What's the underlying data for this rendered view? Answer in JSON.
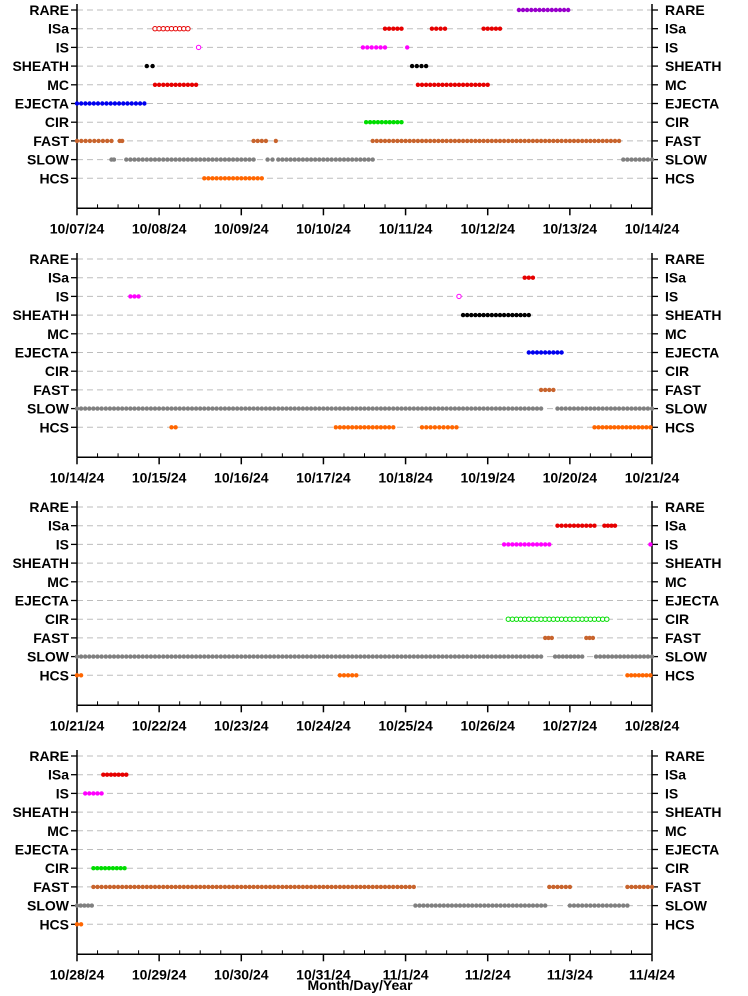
{
  "chart_data": {
    "type": "scatter",
    "categories": [
      "RARE",
      "ISa",
      "IS",
      "SHEATH",
      "MC",
      "EJECTA",
      "CIR",
      "FAST",
      "SLOW",
      "HCS"
    ],
    "xlabel": "Month/Day/Year",
    "grid": "horizontal dashed",
    "colors": {
      "RARE": "#9900cc",
      "ISa": "#e60000",
      "IS": "#ff00ff",
      "SHEATH": "#000000",
      "MC": "#e60000",
      "EJECTA": "#0000ee",
      "CIR": "#00dd00",
      "FAST": "#c8642d",
      "SLOW": "#808080",
      "HCS": "#ff6600"
    },
    "panels": [
      {
        "xticks": [
          "10/07/24",
          "10/08/24",
          "10/09/24",
          "10/10/24",
          "10/11/24",
          "10/12/24",
          "10/13/24",
          "10/14/24"
        ],
        "xlim_days": [
          0,
          7
        ],
        "series": [
          {
            "category": "RARE",
            "segments": [
              [
                5.38,
                5.98
              ]
            ],
            "style": "filled"
          },
          {
            "category": "ISa",
            "segments": [
              [
                0.95,
                1.35
              ]
            ],
            "style": "open"
          },
          {
            "category": "ISa",
            "segments": [
              [
                3.75,
                3.95
              ],
              [
                4.32,
                4.48
              ],
              [
                4.95,
                5.15
              ]
            ],
            "style": "filled"
          },
          {
            "category": "IS",
            "segments": [
              [
                1.48,
                1.48
              ]
            ],
            "style": "open"
          },
          {
            "category": "IS",
            "segments": [
              [
                3.48,
                3.75
              ],
              [
                4.02,
                4.02
              ]
            ],
            "style": "filled"
          },
          {
            "category": "SHEATH",
            "segments": [
              [
                0.85,
                0.92
              ],
              [
                4.08,
                4.25
              ]
            ],
            "style": "filled"
          },
          {
            "category": "MC",
            "segments": [
              [
                0.95,
                1.45
              ],
              [
                4.15,
                5.0
              ]
            ],
            "style": "filled"
          },
          {
            "category": "EJECTA",
            "segments": [
              [
                0.0,
                0.82
              ]
            ],
            "style": "filled"
          },
          {
            "category": "CIR",
            "segments": [
              [
                3.52,
                3.95
              ]
            ],
            "style": "filled"
          },
          {
            "category": "FAST",
            "segments": [
              [
                0.0,
                0.42
              ],
              [
                0.52,
                0.55
              ],
              [
                2.15,
                2.3
              ],
              [
                2.42,
                2.42
              ],
              [
                3.6,
                6.6
              ]
            ],
            "style": "filled"
          },
          {
            "category": "SLOW",
            "segments": [
              [
                0.42,
                0.45
              ],
              [
                0.6,
                2.15
              ],
              [
                2.32,
                2.38
              ],
              [
                2.45,
                3.6
              ],
              [
                6.65,
                7.0
              ]
            ],
            "style": "filled"
          },
          {
            "category": "HCS",
            "segments": [
              [
                1.55,
                2.25
              ]
            ],
            "style": "filled"
          }
        ]
      },
      {
        "xticks": [
          "10/14/24",
          "10/15/24",
          "10/16/24",
          "10/17/24",
          "10/18/24",
          "10/19/24",
          "10/20/24",
          "10/21/24"
        ],
        "xlim_days": [
          0,
          7
        ],
        "series": [
          {
            "category": "ISa",
            "segments": [
              [
                5.45,
                5.55
              ]
            ],
            "style": "filled"
          },
          {
            "category": "IS",
            "segments": [
              [
                0.65,
                0.75
              ]
            ],
            "style": "filled"
          },
          {
            "category": "IS",
            "segments": [
              [
                4.65,
                4.65
              ]
            ],
            "style": "open"
          },
          {
            "category": "SHEATH",
            "segments": [
              [
                4.7,
                5.5
              ]
            ],
            "style": "filled"
          },
          {
            "category": "EJECTA",
            "segments": [
              [
                5.5,
                5.9
              ]
            ],
            "style": "filled"
          },
          {
            "category": "FAST",
            "segments": [
              [
                5.65,
                5.8
              ]
            ],
            "style": "filled"
          },
          {
            "category": "SLOW",
            "segments": [
              [
                0.0,
                5.65
              ],
              [
                5.85,
                7.0
              ]
            ],
            "style": "filled"
          },
          {
            "category": "HCS",
            "segments": [
              [
                1.15,
                1.2
              ],
              [
                3.15,
                3.85
              ],
              [
                4.2,
                4.62
              ],
              [
                6.3,
                6.98
              ]
            ],
            "style": "filled"
          }
        ]
      },
      {
        "xticks": [
          "10/21/24",
          "10/22/24",
          "10/23/24",
          "10/24/24",
          "10/25/24",
          "10/26/24",
          "10/27/24",
          "10/28/24"
        ],
        "xlim_days": [
          0,
          7
        ],
        "series": [
          {
            "category": "ISa",
            "segments": [
              [
                5.85,
                6.3
              ],
              [
                6.42,
                6.55
              ]
            ],
            "style": "filled"
          },
          {
            "category": "IS",
            "segments": [
              [
                5.2,
                5.75
              ],
              [
                6.98,
                6.98
              ]
            ],
            "style": "filled"
          },
          {
            "category": "CIR",
            "segments": [
              [
                5.25,
                6.45
              ]
            ],
            "style": "open"
          },
          {
            "category": "FAST",
            "segments": [
              [
                5.7,
                5.78
              ],
              [
                6.2,
                6.28
              ]
            ],
            "style": "filled"
          },
          {
            "category": "SLOW",
            "segments": [
              [
                0.0,
                5.65
              ],
              [
                5.82,
                6.15
              ],
              [
                6.32,
                7.0
              ]
            ],
            "style": "filled"
          },
          {
            "category": "HCS",
            "segments": [
              [
                0.0,
                0.05
              ],
              [
                3.2,
                3.4
              ],
              [
                6.7,
                6.98
              ]
            ],
            "style": "filled"
          }
        ]
      },
      {
        "xticks": [
          "10/28/24",
          "10/29/24",
          "10/30/24",
          "10/31/24",
          "11/1/24",
          "11/2/24",
          "11/3/24",
          "11/4/24"
        ],
        "xlim_days": [
          0,
          7
        ],
        "series": [
          {
            "category": "ISa",
            "segments": [
              [
                0.32,
                0.6
              ]
            ],
            "style": "filled"
          },
          {
            "category": "IS",
            "segments": [
              [
                0.1,
                0.3
              ]
            ],
            "style": "filled"
          },
          {
            "category": "CIR",
            "segments": [
              [
                0.2,
                0.58
              ]
            ],
            "style": "filled"
          },
          {
            "category": "FAST",
            "segments": [
              [
                0.2,
                4.1
              ],
              [
                5.75,
                6.0
              ],
              [
                6.7,
                7.0
              ]
            ],
            "style": "filled"
          },
          {
            "category": "SLOW",
            "segments": [
              [
                0.0,
                0.18
              ],
              [
                4.12,
                5.7
              ],
              [
                6.0,
                6.7
              ]
            ],
            "style": "filled"
          },
          {
            "category": "HCS",
            "segments": [
              [
                0.0,
                0.05
              ]
            ],
            "style": "filled"
          }
        ]
      }
    ]
  }
}
